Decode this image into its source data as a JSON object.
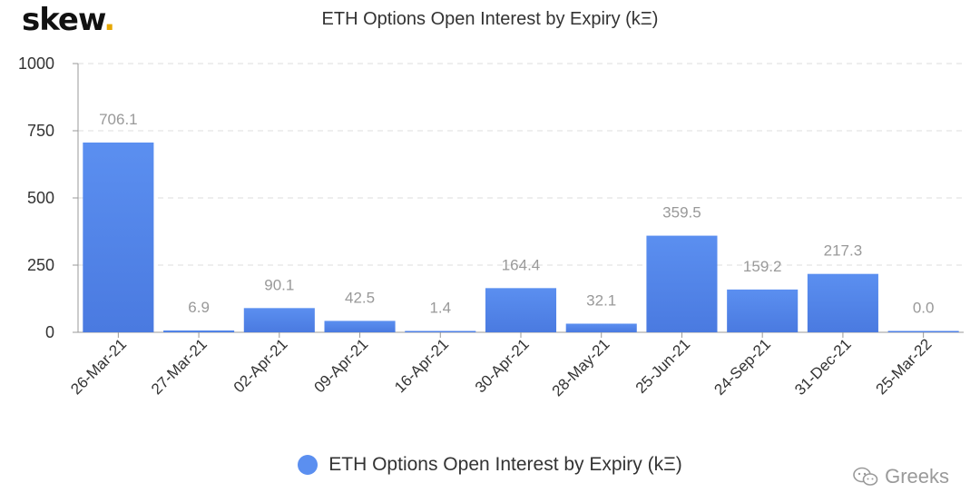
{
  "brand": {
    "name": "skew",
    "dot": "."
  },
  "watermark": {
    "text": "Greeks"
  },
  "colors": {
    "bar_top": "#5b8ff0",
    "bar_bottom": "#4a7ae0",
    "grid": "#dddddd",
    "axis_text": "#333333",
    "label_text": "#999999"
  },
  "chart_data": {
    "type": "bar",
    "title": "ETH Options Open Interest by Expiry (kΞ)",
    "xlabel": "",
    "ylabel": "",
    "categories": [
      "26-Mar-21",
      "27-Mar-21",
      "02-Apr-21",
      "09-Apr-21",
      "16-Apr-21",
      "30-Apr-21",
      "28-May-21",
      "25-Jun-21",
      "24-Sep-21",
      "31-Dec-21",
      "25-Mar-22"
    ],
    "series": [
      {
        "name": "ETH Options Open Interest by Expiry (kΞ)",
        "values": [
          706.1,
          6.9,
          90.1,
          42.5,
          1.4,
          164.4,
          32.1,
          359.5,
          159.2,
          217.3,
          0.0
        ],
        "data_labels": [
          "706.1",
          "6.9",
          "90.1",
          "42.5",
          "1.4",
          "164.4",
          "32.1",
          "359.5",
          "159.2",
          "217.3",
          "0.0"
        ]
      }
    ],
    "ylim": [
      0,
      1000
    ],
    "yticks": [
      0,
      250,
      500,
      750,
      1000
    ],
    "grid": true,
    "legend_position": "bottom"
  }
}
